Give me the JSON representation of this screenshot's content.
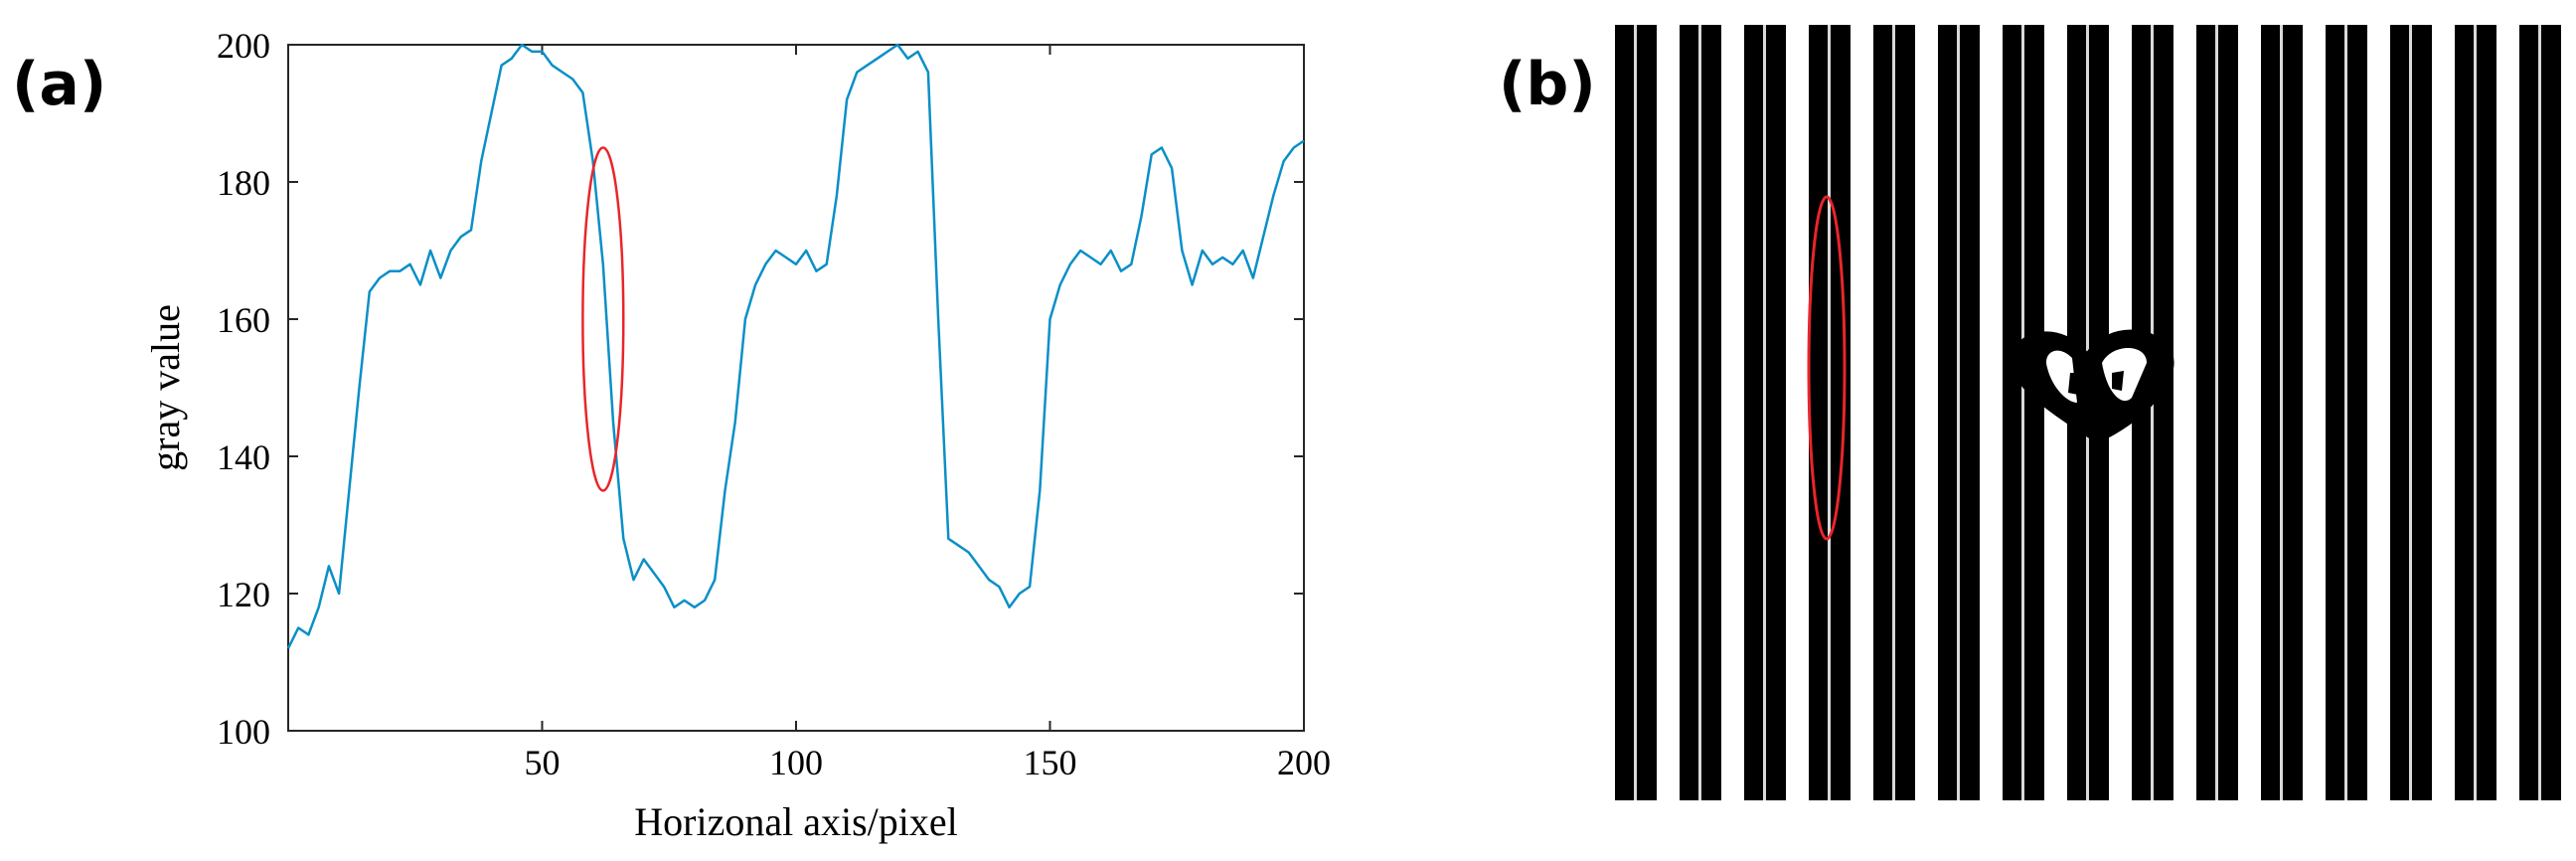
{
  "figure": {
    "panel_a_label": "(a)",
    "panel_b_label": "(b)"
  },
  "chart_data": [
    {
      "type": "line",
      "title": "",
      "xlabel": "Horizonal axis/pixel",
      "ylabel": "gray value",
      "xlim": [
        0,
        200
      ],
      "ylim": [
        100,
        200
      ],
      "xticks": [
        50,
        100,
        150,
        200
      ],
      "yticks": [
        100,
        120,
        140,
        160,
        180,
        200
      ],
      "grid": false,
      "line_color": "#0A8FC8",
      "series": [
        {
          "x": [
            0,
            2,
            4,
            6,
            8,
            10,
            12,
            14,
            16,
            18,
            20,
            22,
            24,
            26,
            28,
            30,
            32,
            34,
            36,
            38,
            40,
            42,
            44,
            46,
            48,
            50,
            52,
            54,
            56,
            58,
            60,
            62,
            64,
            66,
            68,
            70,
            72,
            74,
            76,
            78,
            80,
            82,
            84,
            86,
            88,
            90,
            92,
            94,
            96,
            98,
            100,
            102,
            104,
            106,
            108,
            110,
            112,
            114,
            116,
            118,
            120,
            122,
            124,
            126,
            128,
            130,
            132,
            134,
            136,
            138,
            140,
            142,
            144,
            146,
            148,
            150,
            152,
            154,
            156,
            158,
            160,
            162,
            164,
            166,
            168,
            170,
            172,
            174,
            176,
            178,
            180,
            182,
            184,
            186,
            188,
            190,
            192,
            194,
            196,
            198,
            200
          ],
          "values": [
            112,
            115,
            114,
            118,
            124,
            120,
            135,
            150,
            164,
            166,
            167,
            167,
            168,
            165,
            170,
            166,
            170,
            172,
            173,
            183,
            190,
            197,
            198,
            200,
            199,
            199,
            197,
            196,
            195,
            193,
            183,
            168,
            145,
            128,
            122,
            125,
            123,
            121,
            118,
            119,
            118,
            119,
            122,
            135,
            145,
            160,
            165,
            168,
            170,
            169,
            168,
            170,
            167,
            168,
            178,
            192,
            196,
            197,
            198,
            199,
            200,
            198,
            199,
            196,
            160,
            128,
            127,
            126,
            124,
            122,
            121,
            118,
            120,
            121,
            135,
            160,
            165,
            168,
            170,
            169,
            168,
            170,
            167,
            168,
            175,
            184,
            185,
            182,
            170,
            165,
            170,
            168,
            169,
            168,
            170,
            166,
            172,
            178,
            183,
            185,
            186
          ]
        }
      ],
      "annotations": [
        {
          "shape": "ellipse",
          "color": "#E8262B",
          "center": [
            62,
            160
          ],
          "radius_x": 4,
          "radius_y": 25
        }
      ]
    }
  ],
  "image_b": {
    "description_free": true,
    "stripe_color": "#000000",
    "annotation_color": "#E8262B"
  }
}
